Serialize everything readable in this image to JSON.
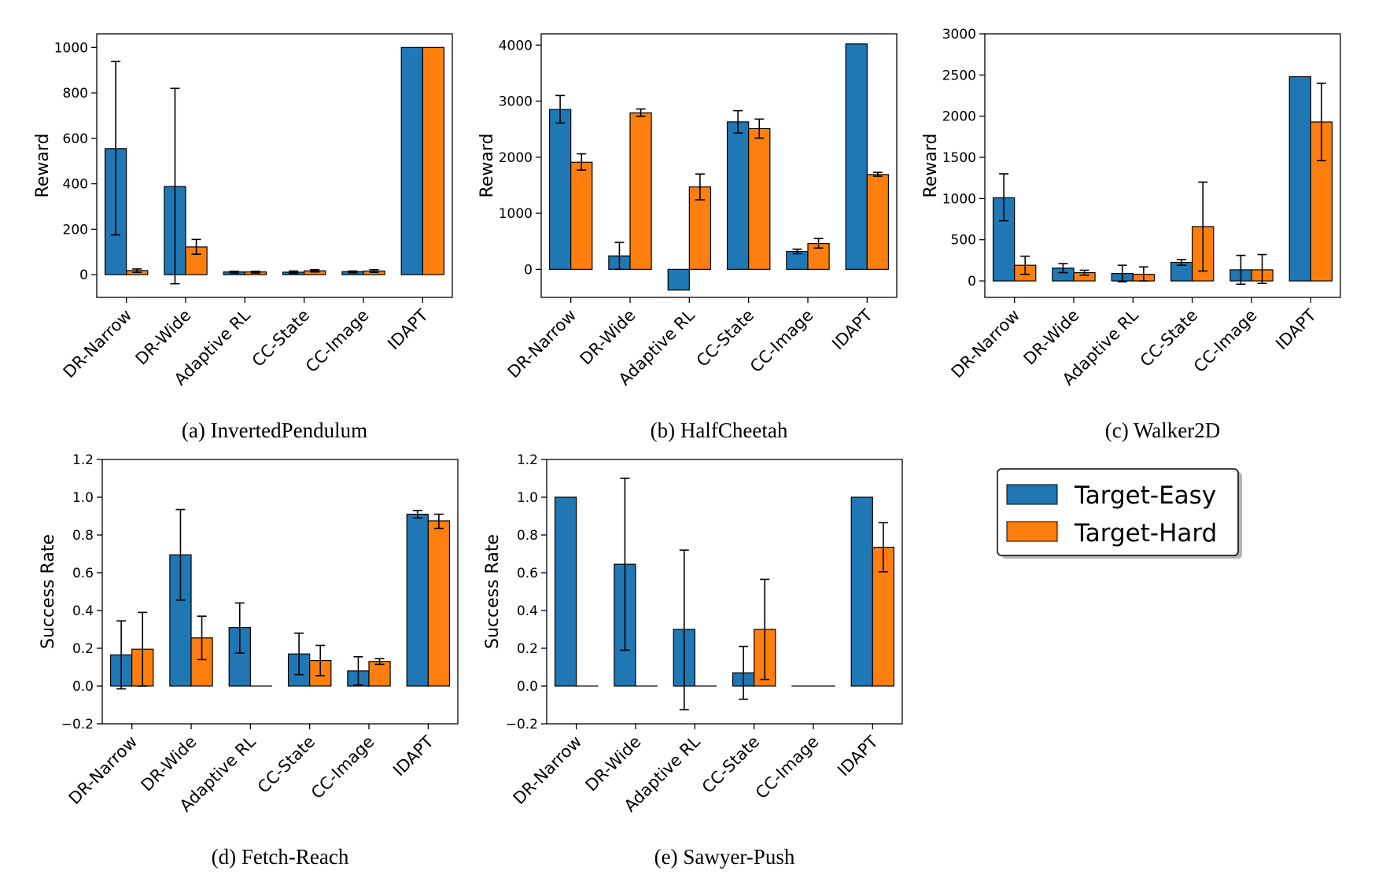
{
  "colors": {
    "easy": "#1f77b4",
    "hard": "#ff7f0e"
  },
  "legend": {
    "items": [
      {
        "label": "Target-Easy",
        "color": "#1f77b4"
      },
      {
        "label": "Target-Hard",
        "color": "#ff7f0e"
      }
    ]
  },
  "chart_data": [
    {
      "type": "bar",
      "caption": "(a) InvertedPendulum",
      "ylabel": "Reward",
      "categories": [
        "DR-Narrow",
        "DR-Wide",
        "Adaptive RL",
        "CC-State",
        "CC-Image",
        "IDAPT"
      ],
      "yticks": [
        0,
        200,
        400,
        600,
        800,
        1000
      ],
      "ylim": [
        -100,
        1060
      ],
      "series": [
        {
          "name": "Target-Easy",
          "values": [
            555,
            388,
            12,
            11,
            13,
            1000
          ],
          "err_low": [
            175,
            -40,
            7,
            6,
            8,
            1000
          ],
          "err_high": [
            938,
            820,
            15,
            16,
            16,
            1000
          ]
        },
        {
          "name": "Target-Hard",
          "values": [
            18,
            122,
            12,
            17,
            16,
            1000
          ],
          "err_low": [
            10,
            90,
            7,
            12,
            10,
            1000
          ],
          "err_high": [
            25,
            155,
            15,
            22,
            22,
            1000
          ]
        }
      ]
    },
    {
      "type": "bar",
      "caption": "(b) HalfCheetah",
      "ylabel": "Reward",
      "categories": [
        "DR-Narrow",
        "DR-Wide",
        "Adaptive RL",
        "CC-State",
        "CC-Image",
        "IDAPT"
      ],
      "yticks": [
        0,
        1000,
        2000,
        3000,
        4000
      ],
      "ylim": [
        -500,
        4200
      ],
      "series": [
        {
          "name": "Target-Easy",
          "values": [
            2850,
            240,
            -370,
            2630,
            320,
            4020
          ],
          "err_low": [
            2610,
            0,
            -370,
            2430,
            280,
            4020
          ],
          "err_high": [
            3100,
            480,
            -370,
            2830,
            360,
            4020
          ]
        },
        {
          "name": "Target-Hard",
          "values": [
            1910,
            2790,
            1470,
            2510,
            460,
            1690
          ],
          "err_low": [
            1770,
            2730,
            1240,
            2340,
            380,
            1660
          ],
          "err_high": [
            2060,
            2860,
            1700,
            2680,
            550,
            1730
          ]
        }
      ]
    },
    {
      "type": "bar",
      "caption": "(c) Walker2D",
      "ylabel": "Reward",
      "categories": [
        "DR-Narrow",
        "DR-Wide",
        "Adaptive RL",
        "CC-State",
        "CC-Image",
        "IDAPT"
      ],
      "yticks": [
        0,
        500,
        1000,
        1500,
        2000,
        2500,
        3000
      ],
      "ylim": [
        -200,
        3000
      ],
      "series": [
        {
          "name": "Target-Easy",
          "values": [
            1010,
            155,
            90,
            225,
            135,
            2480
          ],
          "err_low": [
            730,
            100,
            -10,
            190,
            -40,
            2480
          ],
          "err_high": [
            1300,
            210,
            190,
            260,
            310,
            2480
          ]
        },
        {
          "name": "Target-Hard",
          "values": [
            190,
            100,
            80,
            660,
            135,
            1930
          ],
          "err_low": [
            80,
            70,
            0,
            120,
            -30,
            1460
          ],
          "err_high": [
            300,
            130,
            170,
            1200,
            320,
            2400
          ]
        }
      ]
    },
    {
      "type": "bar",
      "caption": "(d) Fetch-Reach",
      "ylabel": "Success Rate",
      "categories": [
        "DR-Narrow",
        "DR-Wide",
        "Adaptive RL",
        "CC-State",
        "CC-Image",
        "IDAPT"
      ],
      "yticks": [
        -0.2,
        0.0,
        0.2,
        0.4,
        0.6,
        0.8,
        1.0,
        1.2
      ],
      "ytick_labels": [
        "−0.2",
        "0.0",
        "0.2",
        "0.4",
        "0.6",
        "0.8",
        "1.0",
        "1.2"
      ],
      "ylim": [
        -0.2,
        1.2
      ],
      "series": [
        {
          "name": "Target-Easy",
          "values": [
            0.165,
            0.695,
            0.31,
            0.17,
            0.08,
            0.91
          ],
          "err_low": [
            -0.015,
            0.455,
            0.175,
            0.06,
            0.005,
            0.89
          ],
          "err_high": [
            0.345,
            0.935,
            0.44,
            0.28,
            0.155,
            0.93
          ]
        },
        {
          "name": "Target-Hard",
          "values": [
            0.195,
            0.255,
            0.0,
            0.135,
            0.13,
            0.875
          ],
          "err_low": [
            0.0,
            0.14,
            0.0,
            0.055,
            0.115,
            0.835
          ],
          "err_high": [
            0.39,
            0.37,
            0.0,
            0.215,
            0.145,
            0.91
          ]
        }
      ]
    },
    {
      "type": "bar",
      "caption": "(e) Sawyer-Push",
      "ylabel": "Success Rate",
      "categories": [
        "DR-Narrow",
        "DR-Wide",
        "Adaptive RL",
        "CC-State",
        "CC-Image",
        "IDAPT"
      ],
      "yticks": [
        -0.2,
        0.0,
        0.2,
        0.4,
        0.6,
        0.8,
        1.0,
        1.2
      ],
      "ytick_labels": [
        "−0.2",
        "0.0",
        "0.2",
        "0.4",
        "0.6",
        "0.8",
        "1.0",
        "1.2"
      ],
      "ylim": [
        -0.2,
        1.2
      ],
      "series": [
        {
          "name": "Target-Easy",
          "values": [
            1.0,
            0.645,
            0.3,
            0.07,
            0.0,
            1.0
          ],
          "err_low": [
            1.0,
            0.19,
            -0.125,
            -0.07,
            0.0,
            1.0
          ],
          "err_high": [
            1.0,
            1.1,
            0.72,
            0.21,
            0.0,
            1.0
          ]
        },
        {
          "name": "Target-Hard",
          "values": [
            0.0,
            0.0,
            0.0,
            0.3,
            0.0,
            0.735
          ],
          "err_low": [
            0.0,
            0.0,
            0.0,
            0.035,
            0.0,
            0.605
          ],
          "err_high": [
            0.0,
            0.0,
            0.0,
            0.565,
            0.0,
            0.865
          ]
        }
      ]
    }
  ]
}
